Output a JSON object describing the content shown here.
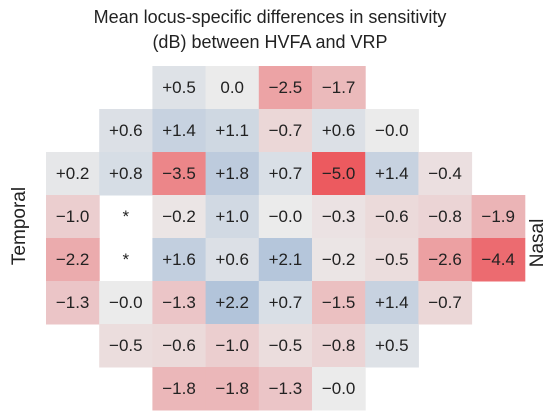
{
  "chart_data": {
    "type": "heatmap",
    "title": [
      "Mean locus-specific differences in sensitivity",
      "(dB) between HVFA and VRP"
    ],
    "left_label": "Temporal",
    "right_label": "Nasal",
    "colors": {
      "negative": "#ec5a5f",
      "zero": "#ebebeb",
      "positive": "#6a93c4"
    },
    "color_range": [
      -5,
      5
    ],
    "values": [
      [
        null,
        null,
        0.5,
        0.0,
        -2.5,
        -1.7,
        null,
        null,
        null
      ],
      [
        null,
        0.6,
        1.4,
        1.1,
        -0.7,
        0.6,
        -0.0,
        null,
        null
      ],
      [
        0.2,
        0.8,
        -3.5,
        1.8,
        0.7,
        -5.0,
        1.4,
        -0.4,
        null
      ],
      [
        -1.0,
        null,
        -0.2,
        1.0,
        -0.0,
        -0.3,
        -0.6,
        -0.8,
        -1.9
      ],
      [
        -2.2,
        null,
        1.6,
        0.6,
        2.1,
        -0.2,
        -0.5,
        -2.6,
        -4.4
      ],
      [
        -1.3,
        -0.0,
        -1.3,
        2.2,
        0.7,
        -1.5,
        1.4,
        -0.7,
        null
      ],
      [
        null,
        -0.5,
        -0.6,
        -1.0,
        -0.5,
        -0.8,
        0.5,
        null,
        null
      ],
      [
        null,
        null,
        -1.8,
        -1.8,
        -1.3,
        -0.0,
        null,
        null,
        null
      ]
    ],
    "value_labels": [
      [
        null,
        null,
        "+0.5",
        "0.0",
        "−2.5",
        "−1.7",
        null,
        null,
        null
      ],
      [
        null,
        "+0.6",
        "+1.4",
        "+1.1",
        "−0.7",
        "+0.6",
        "−0.0",
        null,
        null
      ],
      [
        "+0.2",
        "+0.8",
        "−3.5",
        "+1.8",
        "+0.7",
        "−5.0",
        "+1.4",
        "−0.4",
        null
      ],
      [
        "−1.0",
        "*",
        "−0.2",
        "+1.0",
        "−0.0",
        "−0.3",
        "−0.6",
        "−0.8",
        "−1.9"
      ],
      [
        "−2.2",
        "*",
        "+1.6",
        "+0.6",
        "+2.1",
        "−0.2",
        "−0.5",
        "−2.6",
        "−4.4"
      ],
      [
        "−1.3",
        "−0.0",
        "−1.3",
        "+2.2",
        "+0.7",
        "−1.5",
        "+1.4",
        "−0.7",
        null
      ],
      [
        null,
        "−0.5",
        "−0.6",
        "−1.0",
        "−0.5",
        "−0.8",
        "+0.5",
        null,
        null
      ],
      [
        null,
        null,
        "−1.8",
        "−1.8",
        "−1.3",
        "−0.0",
        null,
        null,
        null
      ]
    ]
  }
}
